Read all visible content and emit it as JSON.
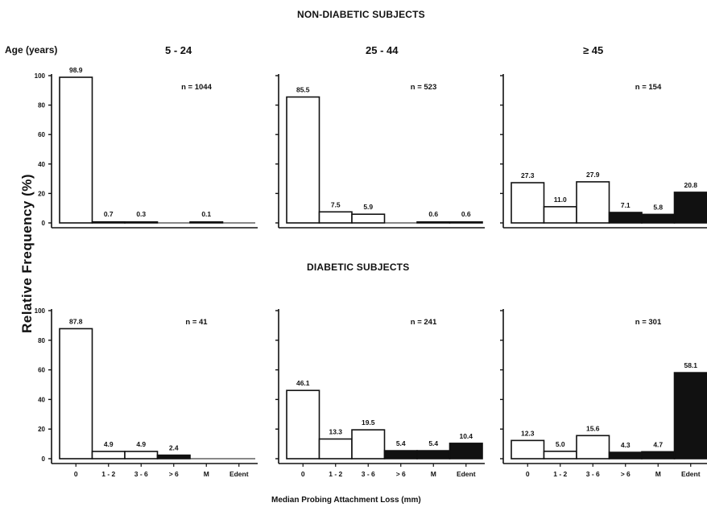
{
  "titles": {
    "non_diabetic": "NON-DIABETIC SUBJECTS",
    "diabetic": "DIABETIC SUBJECTS",
    "age_label": "Age (years)",
    "y_label": "Relative   Frequency   (%)",
    "x_label": "Median Probing Attachment Loss (mm)"
  },
  "age_groups": [
    "5 - 24",
    "25 - 44",
    "≥ 45"
  ],
  "chart_data": {
    "type": "bar",
    "categories": [
      "0",
      "1 - 2",
      "3 - 6",
      "> 6",
      "M",
      "Edent"
    ],
    "ylim": [
      0,
      100
    ],
    "yticks": [
      0,
      20,
      40,
      60,
      80,
      100
    ],
    "filled_categories": [
      "> 6",
      "M",
      "Edent"
    ],
    "panels": [
      {
        "group": "NON-DIABETIC SUBJECTS",
        "age": "5 - 24",
        "n_label": "n = 1044",
        "values": [
          98.9,
          0.7,
          0.3,
          null,
          0.1,
          null
        ],
        "labels": [
          "98.9",
          "0.7",
          "0.3",
          "",
          "0.1",
          ""
        ],
        "show_xticks": false
      },
      {
        "group": "NON-DIABETIC SUBJECTS",
        "age": "25 - 44",
        "n_label": "n = 523",
        "values": [
          85.5,
          7.5,
          5.9,
          null,
          0.6,
          0.6
        ],
        "labels": [
          "85.5",
          "7.5",
          "5.9",
          "",
          "0.6",
          "0.6"
        ],
        "show_xticks": false
      },
      {
        "group": "NON-DIABETIC SUBJECTS",
        "age": "≥ 45",
        "n_label": "n = 154",
        "values": [
          27.3,
          11.0,
          27.9,
          7.1,
          5.8,
          20.8
        ],
        "labels": [
          "27.3",
          "11.0",
          "27.9",
          "7.1",
          "5.8",
          "20.8"
        ],
        "show_xticks": false
      },
      {
        "group": "DIABETIC SUBJECTS",
        "age": "5 - 24",
        "n_label": "n = 41",
        "values": [
          87.8,
          4.9,
          4.9,
          2.4,
          null,
          null
        ],
        "labels": [
          "87.8",
          "4.9",
          "4.9",
          "2.4",
          "",
          ""
        ],
        "show_xticks": true
      },
      {
        "group": "DIABETIC SUBJECTS",
        "age": "25 - 44",
        "n_label": "n = 241",
        "values": [
          46.1,
          13.3,
          19.5,
          5.4,
          5.4,
          10.4
        ],
        "labels": [
          "46.1",
          "13.3",
          "19.5",
          "5.4",
          "5.4",
          "10.4"
        ],
        "show_xticks": true
      },
      {
        "group": "DIABETIC SUBJECTS",
        "age": "≥ 45",
        "n_label": "n = 301",
        "values": [
          12.3,
          5.0,
          15.6,
          4.3,
          4.7,
          58.1
        ],
        "labels": [
          "12.3",
          "5.0",
          "15.6",
          "4.3",
          "4.7",
          "58.1"
        ],
        "show_xticks": true
      }
    ]
  }
}
